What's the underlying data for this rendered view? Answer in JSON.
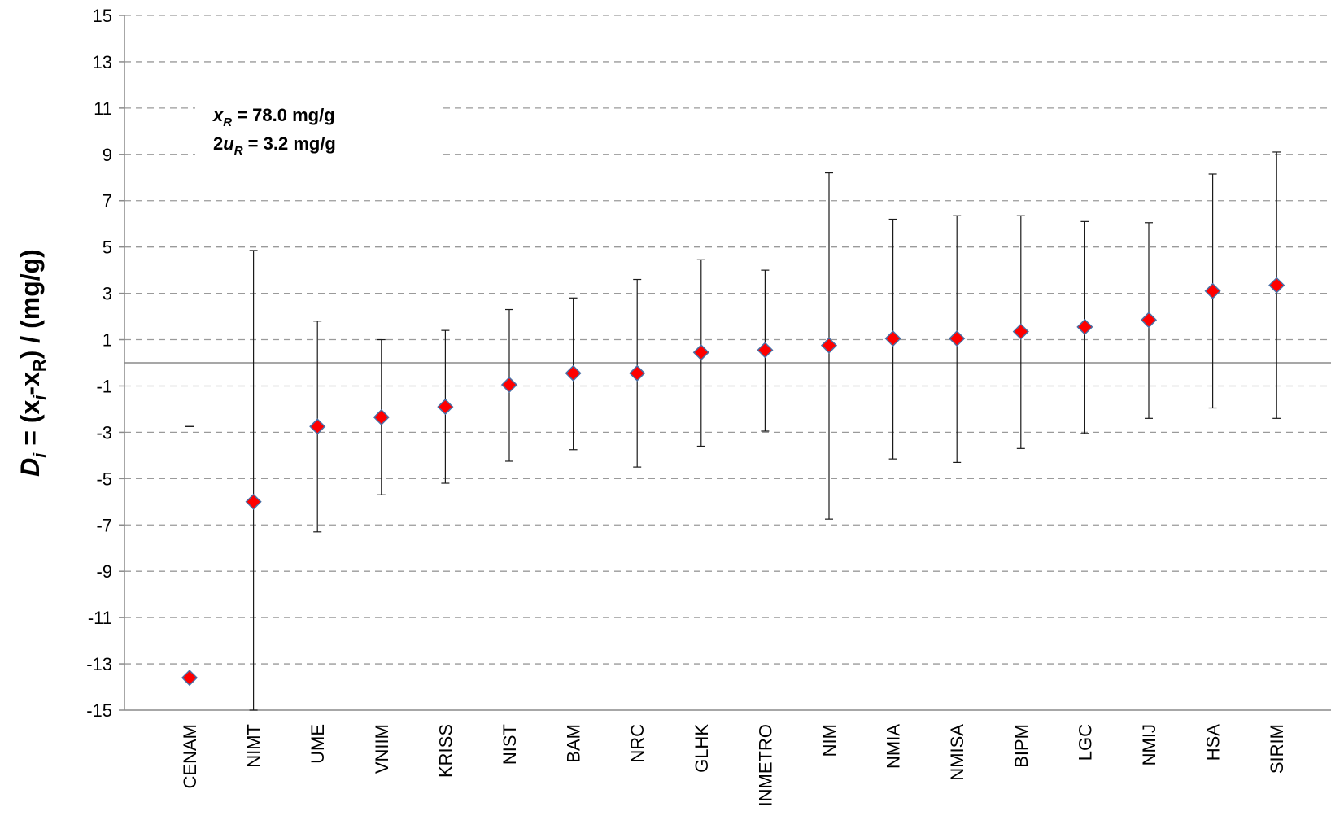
{
  "chart_data": {
    "type": "scatter",
    "title": "",
    "xlabel": "",
    "ylabel_parts": {
      "d": "D",
      "d_sub": "i",
      "eq": " = (x",
      "xi_sub": "i",
      "minus": "-x",
      "xr_sub": "R",
      "rest": ") / (mg/g)"
    },
    "ylim": [
      -15,
      15
    ],
    "yticks": [
      15,
      13,
      11,
      9,
      7,
      5,
      3,
      1,
      -1,
      -3,
      -5,
      -7,
      -9,
      -11,
      -13,
      -15
    ],
    "grid": "horizontal-dashed",
    "reference_line": 0,
    "categories": [
      "CENAM",
      "NIMT",
      "UME",
      "VNIIM",
      "KRISS",
      "NIST",
      "BAM",
      "NRC",
      "GLHK",
      "INMETRO",
      "NIM",
      "NMIA",
      "NMISA",
      "BIPM",
      "LGC",
      "NMIJ",
      "HSA",
      "SIRIM"
    ],
    "values": [
      -13.6,
      -6.0,
      -2.75,
      -2.35,
      -1.9,
      -0.95,
      -0.45,
      -0.45,
      0.45,
      0.55,
      0.75,
      1.05,
      1.05,
      1.35,
      1.55,
      1.85,
      3.1,
      3.35
    ],
    "error_low": [
      -2.75,
      -15.0,
      -7.3,
      -5.7,
      -5.2,
      -4.25,
      -3.75,
      -4.5,
      -3.6,
      -2.95,
      -6.75,
      -4.15,
      -4.3,
      -3.7,
      -3.05,
      -2.4,
      -1.95,
      -2.4
    ],
    "error_high": [
      -2.75,
      4.85,
      1.8,
      1.0,
      1.4,
      2.3,
      2.8,
      3.6,
      4.45,
      4.0,
      8.2,
      6.2,
      6.35,
      6.35,
      6.1,
      6.05,
      8.15,
      9.1
    ],
    "marker_fill": "#ff0000",
    "marker_stroke": "#4a6fa5",
    "annotation": {
      "line1_var": "x",
      "line1_sub": "R",
      "line1_text": " = 78.0 mg/g",
      "line2_prefix": "2",
      "line2_var": "u",
      "line2_sub": "R",
      "line2_text": " =  3.2 mg/g"
    }
  }
}
